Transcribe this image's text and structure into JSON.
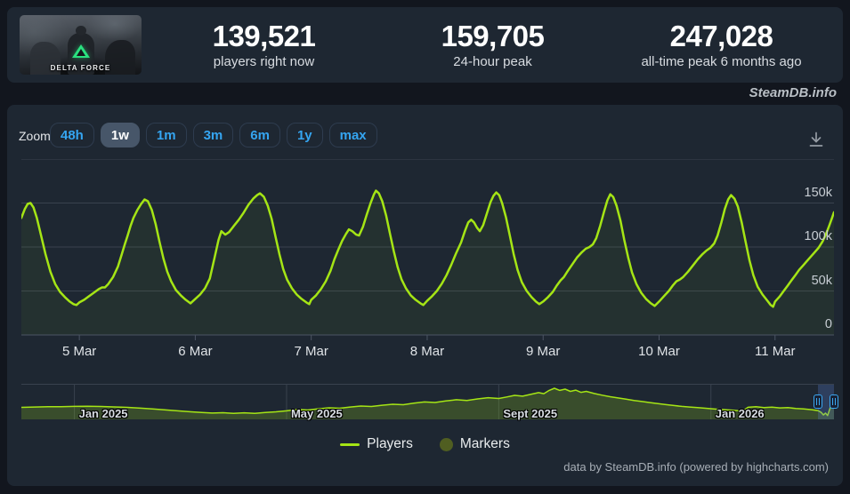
{
  "header": {
    "game_caption": "DELTA FORCE",
    "stats": [
      {
        "value": "139,521",
        "label": "players right now"
      },
      {
        "value": "159,705",
        "label": "24-hour peak"
      },
      {
        "value": "247,028",
        "label": "all-time peak 6 months ago"
      }
    ]
  },
  "watermark": "SteamDB.info",
  "toolbar": {
    "zoom_label": "Zoom",
    "buttons": [
      {
        "label": "48h",
        "selected": false
      },
      {
        "label": "1w",
        "selected": true
      },
      {
        "label": "1m",
        "selected": false
      },
      {
        "label": "3m",
        "selected": false
      },
      {
        "label": "6m",
        "selected": false
      },
      {
        "label": "1y",
        "selected": false
      },
      {
        "label": "max",
        "selected": false
      }
    ],
    "download_icon": "download-icon"
  },
  "legend": [
    {
      "label": "Players",
      "swatch": "line",
      "color": "#a5e515"
    },
    {
      "label": "Markers",
      "swatch": "circle",
      "color": "#505e21"
    }
  ],
  "footer": "data by SteamDB.info (powered by highcharts.com)",
  "colors": {
    "page_bg": "#12161e",
    "card_bg": "#1e2732",
    "line_green": "#a5e515",
    "nav_fill": "rgba(165,229,21,0.2)",
    "accent_blue": "#35a5f1",
    "selected_btn_bg": "#475669",
    "marker_olive": "#505e21",
    "grid": "#39424e",
    "axis": "#4c5564",
    "window_tint": "rgba(90,125,210,0.28)",
    "logo_green": "#2ae17f"
  },
  "chart_data": {
    "type": "line",
    "title": "",
    "main": {
      "series_name": "Players",
      "x_unit": "hours since 4 Mar 12:00 UTC",
      "xlim": [
        0,
        168.2
      ],
      "ylim_k": [
        0,
        200
      ],
      "grid_values_k": [
        50,
        100,
        150,
        200
      ],
      "yticks": [
        {
          "label": "0",
          "value": 0
        },
        {
          "label": "50k",
          "value": 50
        },
        {
          "label": "100k",
          "value": 100
        },
        {
          "label": "150k",
          "value": 150
        }
      ],
      "xticks": [
        {
          "label": "5 Mar",
          "t": 12
        },
        {
          "label": "6 Mar",
          "t": 36
        },
        {
          "label": "7 Mar",
          "t": 60
        },
        {
          "label": "8 Mar",
          "t": 84
        },
        {
          "label": "9 Mar",
          "t": 108
        },
        {
          "label": "10 Mar",
          "t": 132
        },
        {
          "label": "11 Mar",
          "t": 156
        }
      ],
      "points_k": [
        [
          0,
          133
        ],
        [
          0.7,
          143
        ],
        [
          1.3,
          149
        ],
        [
          1.9,
          150
        ],
        [
          2.5,
          145
        ],
        [
          3.2,
          133
        ],
        [
          4,
          115
        ],
        [
          5,
          92
        ],
        [
          6,
          72
        ],
        [
          7,
          58
        ],
        [
          8,
          49
        ],
        [
          9,
          43
        ],
        [
          10,
          38
        ],
        [
          10.8,
          35
        ],
        [
          11.4,
          34
        ],
        [
          12,
          37
        ],
        [
          13,
          40
        ],
        [
          14,
          44
        ],
        [
          15,
          48
        ],
        [
          16,
          52
        ],
        [
          16.7,
          54
        ],
        [
          17.3,
          54
        ],
        [
          18,
          58
        ],
        [
          19,
          66
        ],
        [
          20,
          78
        ],
        [
          20.8,
          92
        ],
        [
          21.4,
          103
        ],
        [
          22,
          113
        ],
        [
          22.6,
          124
        ],
        [
          23.2,
          133
        ],
        [
          24,
          142
        ],
        [
          24.8,
          149
        ],
        [
          25.5,
          154
        ],
        [
          26.2,
          152
        ],
        [
          27,
          142
        ],
        [
          27.8,
          126
        ],
        [
          28.6,
          106
        ],
        [
          29.4,
          87
        ],
        [
          30.2,
          72
        ],
        [
          31,
          61
        ],
        [
          32,
          51
        ],
        [
          33,
          45
        ],
        [
          34,
          40
        ],
        [
          35,
          36
        ],
        [
          36,
          41
        ],
        [
          37,
          46
        ],
        [
          38,
          53
        ],
        [
          39,
          64
        ],
        [
          40,
          88
        ],
        [
          40.8,
          108
        ],
        [
          41.4,
          118
        ],
        [
          42.2,
          114
        ],
        [
          43,
          117
        ],
        [
          44,
          124
        ],
        [
          45,
          131
        ],
        [
          46,
          139
        ],
        [
          47,
          148
        ],
        [
          48,
          155
        ],
        [
          48.8,
          159
        ],
        [
          49.4,
          161
        ],
        [
          50.2,
          157
        ],
        [
          51,
          147
        ],
        [
          51.8,
          132
        ],
        [
          52.6,
          112
        ],
        [
          53.4,
          92
        ],
        [
          54.2,
          75
        ],
        [
          55,
          63
        ],
        [
          56,
          53
        ],
        [
          57,
          46
        ],
        [
          58,
          41
        ],
        [
          59,
          37
        ],
        [
          59.6,
          35
        ],
        [
          60,
          40
        ],
        [
          61,
          45
        ],
        [
          62,
          52
        ],
        [
          63,
          61
        ],
        [
          64,
          73
        ],
        [
          64.8,
          86
        ],
        [
          65.6,
          97
        ],
        [
          66.4,
          107
        ],
        [
          67.2,
          115
        ],
        [
          67.8,
          120
        ],
        [
          68.5,
          118
        ],
        [
          69.3,
          114
        ],
        [
          69.9,
          113
        ],
        [
          70.7,
          123
        ],
        [
          71.5,
          137
        ],
        [
          72.3,
          150
        ],
        [
          73,
          160
        ],
        [
          73.4,
          164
        ],
        [
          74,
          161
        ],
        [
          74.7,
          152
        ],
        [
          75.5,
          136
        ],
        [
          76.3,
          115
        ],
        [
          77.1,
          95
        ],
        [
          77.9,
          77
        ],
        [
          78.7,
          63
        ],
        [
          79.6,
          53
        ],
        [
          80.6,
          45
        ],
        [
          81.6,
          40
        ],
        [
          82.6,
          36
        ],
        [
          83.2,
          34
        ],
        [
          84,
          39
        ],
        [
          85,
          44
        ],
        [
          86,
          50
        ],
        [
          87,
          58
        ],
        [
          88,
          68
        ],
        [
          89,
          80
        ],
        [
          90,
          93
        ],
        [
          91,
          105
        ],
        [
          91.8,
          118
        ],
        [
          92.5,
          128
        ],
        [
          93.1,
          131
        ],
        [
          93.7,
          128
        ],
        [
          94.3,
          122
        ],
        [
          94.9,
          118
        ],
        [
          95.6,
          125
        ],
        [
          96.4,
          139
        ],
        [
          97.1,
          151
        ],
        [
          97.7,
          158
        ],
        [
          98.3,
          162
        ],
        [
          98.9,
          159
        ],
        [
          99.5,
          150
        ],
        [
          100.3,
          134
        ],
        [
          101.1,
          113
        ],
        [
          101.9,
          92
        ],
        [
          102.7,
          74
        ],
        [
          103.6,
          60
        ],
        [
          104.6,
          50
        ],
        [
          105.6,
          43
        ],
        [
          106.5,
          38
        ],
        [
          107.2,
          35
        ],
        [
          108,
          38
        ],
        [
          109,
          43
        ],
        [
          110,
          49
        ],
        [
          110.8,
          56
        ],
        [
          111.6,
          62
        ],
        [
          112.3,
          66
        ],
        [
          113,
          72
        ],
        [
          114,
          80
        ],
        [
          115,
          88
        ],
        [
          116,
          94
        ],
        [
          116.8,
          98
        ],
        [
          117.6,
          100
        ],
        [
          118.3,
          103
        ],
        [
          119,
          110
        ],
        [
          119.8,
          124
        ],
        [
          120.6,
          140
        ],
        [
          121.3,
          153
        ],
        [
          121.9,
          160
        ],
        [
          122.5,
          157
        ],
        [
          123.2,
          147
        ],
        [
          124,
          130
        ],
        [
          124.8,
          108
        ],
        [
          125.6,
          88
        ],
        [
          126.4,
          71
        ],
        [
          127.3,
          58
        ],
        [
          128.3,
          48
        ],
        [
          129.3,
          41
        ],
        [
          130.3,
          36
        ],
        [
          131.1,
          33
        ],
        [
          132,
          38
        ],
        [
          133,
          44
        ],
        [
          134,
          50
        ],
        [
          134.8,
          56
        ],
        [
          135.6,
          61
        ],
        [
          136.3,
          63
        ],
        [
          137,
          66
        ],
        [
          138,
          72
        ],
        [
          139,
          79
        ],
        [
          140,
          86
        ],
        [
          141,
          92
        ],
        [
          141.8,
          96
        ],
        [
          142.6,
          99
        ],
        [
          143.4,
          104
        ],
        [
          144.1,
          113
        ],
        [
          144.9,
          128
        ],
        [
          145.6,
          143
        ],
        [
          146.3,
          154
        ],
        [
          146.9,
          159
        ],
        [
          147.6,
          155
        ],
        [
          148.3,
          146
        ],
        [
          149.1,
          128
        ],
        [
          149.9,
          106
        ],
        [
          150.7,
          85
        ],
        [
          151.5,
          68
        ],
        [
          152.4,
          55
        ],
        [
          153.4,
          46
        ],
        [
          154.4,
          39
        ],
        [
          155.1,
          34
        ],
        [
          155.6,
          32
        ],
        [
          156,
          38
        ],
        [
          157,
          44
        ],
        [
          157.8,
          50
        ],
        [
          158.6,
          56
        ],
        [
          159.4,
          62
        ],
        [
          160.2,
          68
        ],
        [
          161,
          74
        ],
        [
          161.8,
          79
        ],
        [
          162.6,
          84
        ],
        [
          163.4,
          89
        ],
        [
          164.2,
          94
        ],
        [
          165,
          99
        ],
        [
          165.8,
          106
        ],
        [
          166.5,
          114
        ],
        [
          167.2,
          124
        ],
        [
          167.8,
          133
        ],
        [
          168.2,
          139.5
        ]
      ]
    },
    "navigator": {
      "x_unit": "months since Dec 2024",
      "xlim": [
        0,
        15.32
      ],
      "ylim_k": [
        0,
        282
      ],
      "xticks": [
        {
          "label": "Jan 2025",
          "m": 1
        },
        {
          "label": "May 2025",
          "m": 5
        },
        {
          "label": "Sept 2025",
          "m": 9
        },
        {
          "label": "Jan 2026",
          "m": 13
        }
      ],
      "selected_window": [
        15.02,
        15.32
      ],
      "points_k": [
        [
          0,
          95
        ],
        [
          0.25,
          98
        ],
        [
          0.5,
          100
        ],
        [
          0.75,
          101
        ],
        [
          1,
          103
        ],
        [
          1.25,
          104
        ],
        [
          1.5,
          102
        ],
        [
          1.75,
          99
        ],
        [
          2,
          95
        ],
        [
          2.25,
          89
        ],
        [
          2.5,
          82
        ],
        [
          2.75,
          74
        ],
        [
          3,
          66
        ],
        [
          3.2,
          60
        ],
        [
          3.4,
          55
        ],
        [
          3.6,
          50
        ],
        [
          3.8,
          53
        ],
        [
          4,
          48
        ],
        [
          4.2,
          52
        ],
        [
          4.4,
          47
        ],
        [
          4.6,
          54
        ],
        [
          4.8,
          60
        ],
        [
          5,
          68
        ],
        [
          5.2,
          78
        ],
        [
          5.4,
          74
        ],
        [
          5.6,
          84
        ],
        [
          5.8,
          92
        ],
        [
          6,
          88
        ],
        [
          6.2,
          98
        ],
        [
          6.4,
          106
        ],
        [
          6.6,
          102
        ],
        [
          6.8,
          112
        ],
        [
          7,
          120
        ],
        [
          7.2,
          116
        ],
        [
          7.4,
          128
        ],
        [
          7.6,
          138
        ],
        [
          7.8,
          134
        ],
        [
          8,
          146
        ],
        [
          8.2,
          156
        ],
        [
          8.4,
          150
        ],
        [
          8.6,
          162
        ],
        [
          8.8,
          172
        ],
        [
          9,
          166
        ],
        [
          9.15,
          178
        ],
        [
          9.3,
          190
        ],
        [
          9.45,
          184
        ],
        [
          9.6,
          198
        ],
        [
          9.75,
          212
        ],
        [
          9.85,
          204
        ],
        [
          9.95,
          230
        ],
        [
          10.05,
          247
        ],
        [
          10.15,
          230
        ],
        [
          10.25,
          240
        ],
        [
          10.35,
          222
        ],
        [
          10.45,
          232
        ],
        [
          10.55,
          214
        ],
        [
          10.65,
          222
        ],
        [
          10.8,
          205
        ],
        [
          10.95,
          192
        ],
        [
          11.1,
          180
        ],
        [
          11.25,
          170
        ],
        [
          11.4,
          160
        ],
        [
          11.55,
          150
        ],
        [
          11.7,
          142
        ],
        [
          11.85,
          133
        ],
        [
          12,
          125
        ],
        [
          12.15,
          117
        ],
        [
          12.3,
          110
        ],
        [
          12.45,
          103
        ],
        [
          12.6,
          98
        ],
        [
          12.75,
          94
        ],
        [
          12.9,
          88
        ],
        [
          13.05,
          83
        ],
        [
          13.2,
          78
        ],
        [
          13.35,
          74
        ],
        [
          13.5,
          70
        ],
        [
          13.6,
          67
        ],
        [
          13.7,
          96
        ],
        [
          13.85,
          100
        ],
        [
          14,
          94
        ],
        [
          14.15,
          97
        ],
        [
          14.3,
          91
        ],
        [
          14.45,
          93
        ],
        [
          14.6,
          87
        ],
        [
          14.75,
          83
        ],
        [
          14.9,
          77
        ],
        [
          15.02,
          70
        ],
        [
          15.08,
          55
        ],
        [
          15.12,
          35
        ],
        [
          15.16,
          50
        ],
        [
          15.2,
          30
        ],
        [
          15.26,
          105
        ],
        [
          15.3,
          139
        ],
        [
          15.32,
          128
        ]
      ]
    }
  }
}
